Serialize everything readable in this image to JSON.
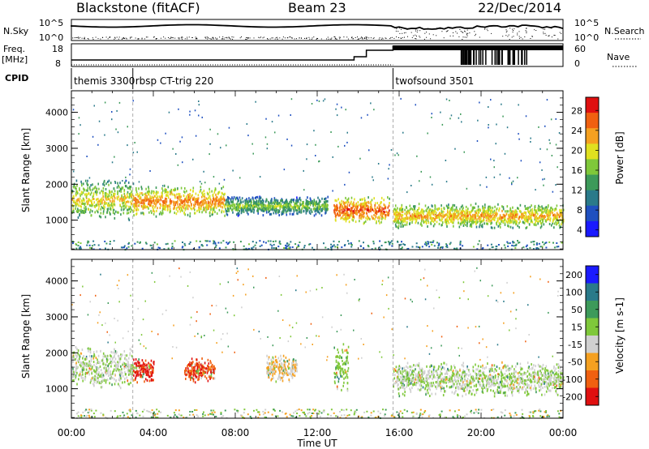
{
  "header": {
    "station": "Blackstone (fitACF)",
    "beam": "Beam 23",
    "date": "22/Dec/2014"
  },
  "top_panels": {
    "nsky_label": "N.Sky",
    "nsky_ticks": [
      "10^5",
      "10^0"
    ],
    "nsearch_label": "N.Search",
    "nsearch_ticks": [
      "10^5",
      "10^0"
    ],
    "freq_label": "Freq.",
    "freq_unit": "[MHz]",
    "freq_ticks": [
      "18",
      "8"
    ],
    "nave_label": "Nave",
    "nave_ticks": [
      "60",
      "0"
    ],
    "cpid_label": "CPID",
    "programs": [
      {
        "name": "themis 3300",
        "start_hour": 0.0
      },
      {
        "name": "rbsp CT-trig 220",
        "start_hour": 3.0
      },
      {
        "name": "twofsound 3501",
        "start_hour": 15.7
      }
    ]
  },
  "chart_data": [
    {
      "type": "heatmap",
      "panel": "power",
      "ylabel": "Slant Range [km]",
      "xlabel": "Time UT",
      "xlim": [
        0,
        24
      ],
      "ylim": [
        180,
        4600
      ],
      "y_ticks": [
        "1000",
        "2000",
        "3000",
        "4000"
      ],
      "x_ticks": [
        "00:00",
        "04:00",
        "08:00",
        "12:00",
        "16:00",
        "20:00",
        "00:00"
      ],
      "colorbar": {
        "label": "Power [dB]",
        "ticks": [
          "28",
          "24",
          "20",
          "16",
          "12",
          "8",
          "4"
        ],
        "range": [
          0,
          30
        ],
        "colors": [
          "#1a1aff",
          "#1f50c0",
          "#2a7a8a",
          "#3d9a5a",
          "#7fc83a",
          "#e0e020",
          "#f5a020",
          "#f06010",
          "#e01010"
        ]
      },
      "bands": [
        {
          "t0": 0.0,
          "t1": 3.0,
          "r0": 1000,
          "r1": 2200,
          "power": 14
        },
        {
          "t0": 3.0,
          "t1": 7.5,
          "r0": 1100,
          "r1": 2000,
          "power": 18
        },
        {
          "t0": 7.5,
          "t1": 12.5,
          "r0": 1150,
          "r1": 1700,
          "power": 10
        },
        {
          "t0": 12.8,
          "t1": 15.5,
          "r0": 900,
          "r1": 1700,
          "power": 20
        },
        {
          "t0": 15.7,
          "t1": 24.0,
          "r0": 800,
          "r1": 1500,
          "power": 16
        }
      ]
    },
    {
      "type": "heatmap",
      "panel": "velocity",
      "ylabel": "Slant Range [km]",
      "xlabel": "Time UT",
      "xlim": [
        0,
        24
      ],
      "ylim": [
        180,
        4600
      ],
      "y_ticks": [
        "1000",
        "2000",
        "3000",
        "4000"
      ],
      "x_ticks": [
        "00:00",
        "04:00",
        "08:00",
        "12:00",
        "16:00",
        "20:00",
        "00:00"
      ],
      "colorbar": {
        "label": "Velocity [m s-1]",
        "ticks": [
          "200",
          "100",
          "50",
          "15",
          "-15",
          "-50",
          "-100",
          "-200"
        ],
        "range": [
          -250,
          250
        ],
        "colors": [
          "#e01010",
          "#f06010",
          "#f5a020",
          "#d0d0d0",
          "#7fc83a",
          "#3d9a5a",
          "#2a7a8a",
          "#1a1aff"
        ]
      },
      "bands": [
        {
          "t0": 0.0,
          "t1": 3.0,
          "r0": 1000,
          "r1": 2200,
          "velocity": -5
        },
        {
          "t0": 3.0,
          "t1": 4.0,
          "r0": 1200,
          "r1": 1900,
          "velocity": -200
        },
        {
          "t0": 5.5,
          "t1": 7.0,
          "r0": 1200,
          "r1": 1900,
          "velocity": -180
        },
        {
          "t0": 9.5,
          "t1": 11.0,
          "r0": 1200,
          "r1": 2000,
          "velocity": -60
        },
        {
          "t0": 12.8,
          "t1": 13.5,
          "r0": 900,
          "r1": 2300,
          "velocity": 40
        },
        {
          "t0": 15.7,
          "t1": 24.0,
          "r0": 800,
          "r1": 1800,
          "velocity": 0
        }
      ]
    }
  ]
}
